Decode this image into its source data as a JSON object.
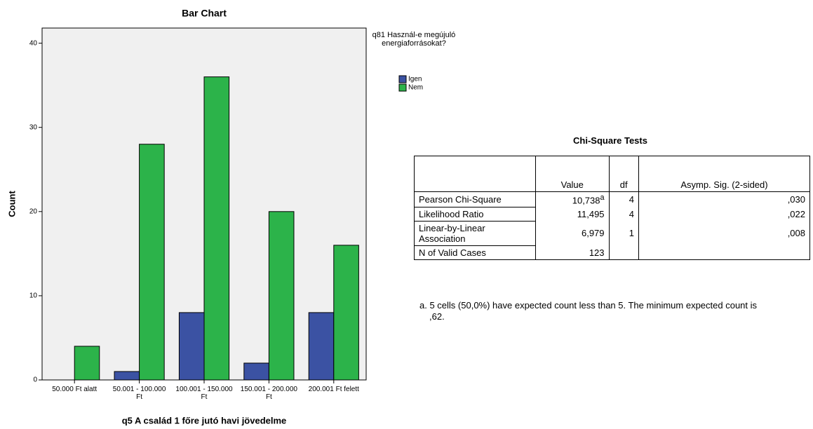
{
  "chart_data": {
    "type": "bar",
    "title": "Bar Chart",
    "x_label": "q5 A család 1 főre jutó havi jövedelme",
    "y_label": "Count",
    "categories": [
      "50.000 Ft alatt",
      "50.001 - 100.000 Ft",
      "100.001 - 150.000 Ft",
      "150.001 - 200.000 Ft",
      "200.001 Ft felett"
    ],
    "legend_title": "q81 Használ-e megújuló energiaforrásokat?",
    "series": [
      {
        "name": "Igen",
        "color": "#3b52a3",
        "values": [
          0,
          1,
          8,
          2,
          8
        ]
      },
      {
        "name": "Nem",
        "color": "#2cb34a",
        "values": [
          4,
          28,
          36,
          20,
          16
        ]
      }
    ],
    "ylim": [
      0,
      41.8
    ],
    "yticks": [
      0,
      10,
      20,
      30,
      40
    ],
    "grid": false
  },
  "table": {
    "title": "Chi-Square Tests",
    "header": [
      "Value",
      "df",
      "Asymp. Sig. (2-sided)"
    ],
    "rows": [
      {
        "label": "Pearson Chi-Square",
        "value": "10,738",
        "note": "a",
        "df": "4",
        "sig": ",030"
      },
      {
        "label": "Likelihood Ratio",
        "value": "11,495",
        "df": "4",
        "sig": ",022"
      },
      {
        "label": "Linear-by-Linear Association",
        "value": "6,979",
        "df": "1",
        "sig": ",008"
      },
      {
        "label": "N of Valid Cases",
        "value": "123"
      }
    ],
    "footnote": "a. 5 cells (50,0%) have expected count less than 5. The minimum expected count is ,62."
  }
}
